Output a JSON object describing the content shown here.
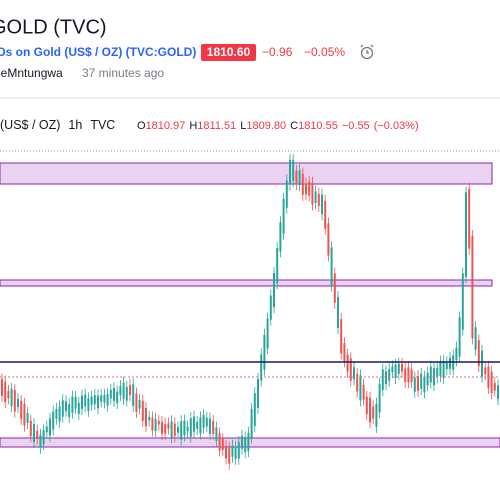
{
  "header": {
    "symbol": "GOLD (TVC)",
    "description": "Ds on Gold (US$ / OZ) (TVC:GOLD)",
    "price": "1810.60",
    "change": "−0.96",
    "change_percent": "−0.05%"
  },
  "author": {
    "name": "leMntungwa",
    "time": "37 minutes ago"
  },
  "legend": {
    "title": "(US$ / OZ)",
    "interval": "1h",
    "source": "TVC",
    "ohlc": [
      {
        "label": "O",
        "value": "1810.97"
      },
      {
        "label": "H",
        "value": "1811.51"
      },
      {
        "label": "L",
        "value": "1809.80"
      },
      {
        "label": "C",
        "value": "1810.55"
      }
    ],
    "change": "−0.55",
    "change_percent": "(−0.03%)"
  }
}
